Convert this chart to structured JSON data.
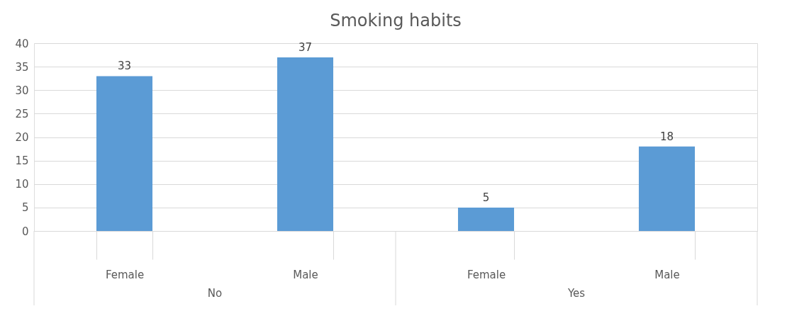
{
  "chart_data": {
    "type": "bar",
    "title": "Smoking habits",
    "categories": [
      "Female",
      "Male",
      "Female",
      "Male"
    ],
    "values": [
      33,
      37,
      5,
      18
    ],
    "color": "#5b9bd5",
    "ylim": [
      0,
      40
    ],
    "yticks": [
      0,
      5,
      10,
      15,
      20,
      25,
      30,
      35,
      40
    ],
    "grid": "y",
    "data_labels": true,
    "annotations": [
      "No",
      "Yes"
    ]
  }
}
